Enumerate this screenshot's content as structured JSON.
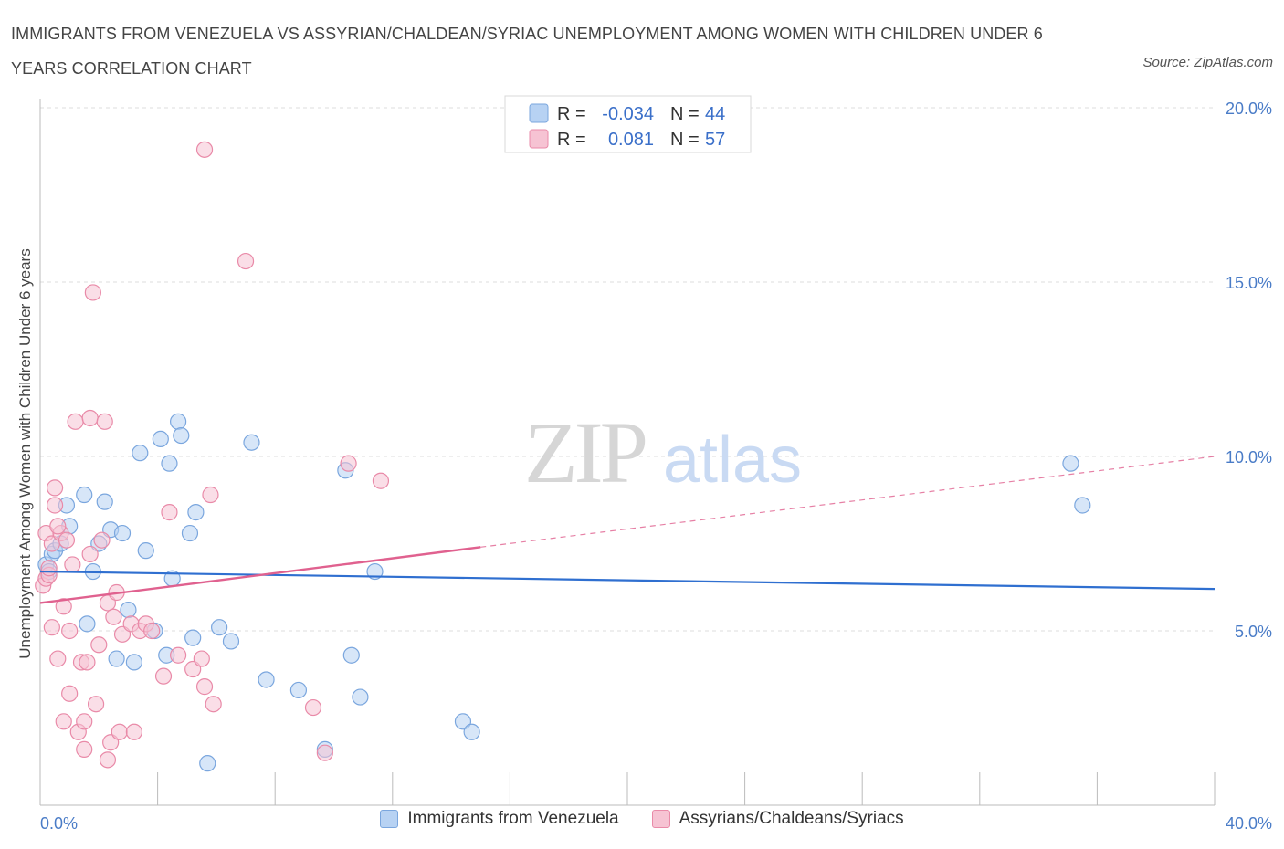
{
  "header": {
    "title": "IMMIGRANTS FROM VENEZUELA VS ASSYRIAN/CHALDEAN/SYRIAC UNEMPLOYMENT AMONG WOMEN WITH CHILDREN UNDER 6 YEARS CORRELATION CHART",
    "source": "Source: ZipAtlas.com"
  },
  "watermark": {
    "zip": "ZIP",
    "atlas": "atlas"
  },
  "colors": {
    "blue_fill": "#b7d2f3",
    "blue_stroke": "#7aa6de",
    "blue_line": "#2f6fd0",
    "pink_fill": "#f6c3d3",
    "pink_stroke": "#e98aa8",
    "pink_line": "#e0618f"
  },
  "legend": {
    "rows": [
      {
        "r_label": "R =",
        "r_value": "-0.034",
        "n_label": "N =",
        "n_value": "44"
      },
      {
        "r_label": "R =",
        "r_value": "0.081",
        "n_label": "N =",
        "n_value": "57"
      }
    ]
  },
  "chart_data": {
    "type": "scatter",
    "xlabel": "",
    "ylabel": "Unemployment Among Women with Children Under 6 years",
    "xlim": [
      0,
      40
    ],
    "ylim": [
      0,
      20
    ],
    "x_tick_labels": [
      "0.0%",
      "40.0%"
    ],
    "y_tick_labels": [
      {
        "value": 5,
        "label": "5.0%"
      },
      {
        "value": 10,
        "label": "10.0%"
      },
      {
        "value": 15,
        "label": "15.0%"
      },
      {
        "value": 20,
        "label": "20.0%"
      }
    ],
    "grid": "horizontal dashed",
    "legend_position": "bottom",
    "series": [
      {
        "name": "Immigrants from Venezuela",
        "R": -0.034,
        "N": 44,
        "trend": {
          "x": [
            0,
            40
          ],
          "y": [
            6.7,
            6.2
          ]
        },
        "points": [
          [
            0.2,
            6.9
          ],
          [
            0.3,
            6.7
          ],
          [
            0.4,
            7.2
          ],
          [
            0.5,
            7.3
          ],
          [
            0.7,
            7.5
          ],
          [
            0.9,
            8.6
          ],
          [
            1.0,
            8.0
          ],
          [
            1.5,
            8.9
          ],
          [
            1.6,
            5.2
          ],
          [
            1.8,
            6.7
          ],
          [
            2.0,
            7.5
          ],
          [
            2.2,
            8.7
          ],
          [
            2.4,
            7.9
          ],
          [
            2.6,
            4.2
          ],
          [
            2.8,
            7.8
          ],
          [
            3.0,
            5.6
          ],
          [
            3.2,
            4.1
          ],
          [
            3.4,
            10.1
          ],
          [
            3.6,
            7.3
          ],
          [
            3.9,
            5.0
          ],
          [
            4.1,
            10.5
          ],
          [
            4.3,
            4.3
          ],
          [
            4.4,
            9.8
          ],
          [
            4.5,
            6.5
          ],
          [
            4.7,
            11.0
          ],
          [
            4.8,
            10.6
          ],
          [
            5.1,
            7.8
          ],
          [
            5.2,
            4.8
          ],
          [
            5.3,
            8.4
          ],
          [
            5.7,
            1.2
          ],
          [
            6.1,
            5.1
          ],
          [
            6.5,
            4.7
          ],
          [
            7.2,
            10.4
          ],
          [
            7.7,
            3.6
          ],
          [
            8.8,
            3.3
          ],
          [
            9.7,
            1.6
          ],
          [
            10.4,
            9.6
          ],
          [
            10.6,
            4.3
          ],
          [
            10.9,
            3.1
          ],
          [
            11.4,
            6.7
          ],
          [
            14.4,
            2.4
          ],
          [
            14.7,
            2.1
          ],
          [
            35.1,
            9.8
          ],
          [
            35.5,
            8.6
          ]
        ]
      },
      {
        "name": "Assyrians/Chaldeans/Syriacs",
        "R": 0.081,
        "N": 57,
        "trend": {
          "x": [
            0,
            15
          ],
          "y": [
            5.8,
            7.4
          ]
        },
        "trend_extended": {
          "x": [
            15,
            40
          ],
          "y": [
            7.4,
            10.0
          ]
        },
        "points": [
          [
            0.1,
            6.3
          ],
          [
            0.2,
            6.5
          ],
          [
            0.2,
            7.8
          ],
          [
            0.3,
            6.6
          ],
          [
            0.4,
            5.1
          ],
          [
            0.4,
            7.5
          ],
          [
            0.5,
            8.6
          ],
          [
            0.5,
            9.1
          ],
          [
            0.6,
            4.2
          ],
          [
            0.7,
            7.8
          ],
          [
            0.8,
            5.7
          ],
          [
            0.8,
            2.4
          ],
          [
            0.9,
            7.6
          ],
          [
            1.0,
            3.2
          ],
          [
            1.0,
            5.0
          ],
          [
            1.2,
            11.0
          ],
          [
            1.3,
            2.1
          ],
          [
            1.4,
            4.1
          ],
          [
            1.5,
            2.4
          ],
          [
            1.5,
            1.6
          ],
          [
            1.6,
            4.1
          ],
          [
            1.7,
            7.2
          ],
          [
            1.7,
            11.1
          ],
          [
            1.8,
            14.7
          ],
          [
            1.9,
            2.9
          ],
          [
            2.0,
            4.6
          ],
          [
            2.1,
            7.6
          ],
          [
            2.2,
            11.0
          ],
          [
            2.3,
            5.8
          ],
          [
            2.3,
            1.3
          ],
          [
            2.4,
            1.8
          ],
          [
            2.6,
            6.1
          ],
          [
            2.7,
            2.1
          ],
          [
            2.8,
            4.9
          ],
          [
            3.1,
            5.2
          ],
          [
            3.2,
            2.1
          ],
          [
            3.4,
            5.0
          ],
          [
            3.6,
            5.2
          ],
          [
            3.8,
            5.0
          ],
          [
            4.2,
            3.7
          ],
          [
            4.4,
            8.4
          ],
          [
            4.7,
            4.3
          ],
          [
            5.2,
            3.9
          ],
          [
            5.5,
            4.2
          ],
          [
            5.6,
            3.4
          ],
          [
            5.6,
            18.8
          ],
          [
            5.8,
            8.9
          ],
          [
            5.9,
            2.9
          ],
          [
            7.0,
            15.6
          ],
          [
            9.3,
            2.8
          ],
          [
            9.7,
            1.5
          ],
          [
            10.5,
            9.8
          ],
          [
            11.6,
            9.3
          ],
          [
            0.3,
            6.8
          ],
          [
            1.1,
            6.9
          ],
          [
            0.6,
            8.0
          ],
          [
            2.5,
            5.4
          ]
        ]
      }
    ]
  }
}
